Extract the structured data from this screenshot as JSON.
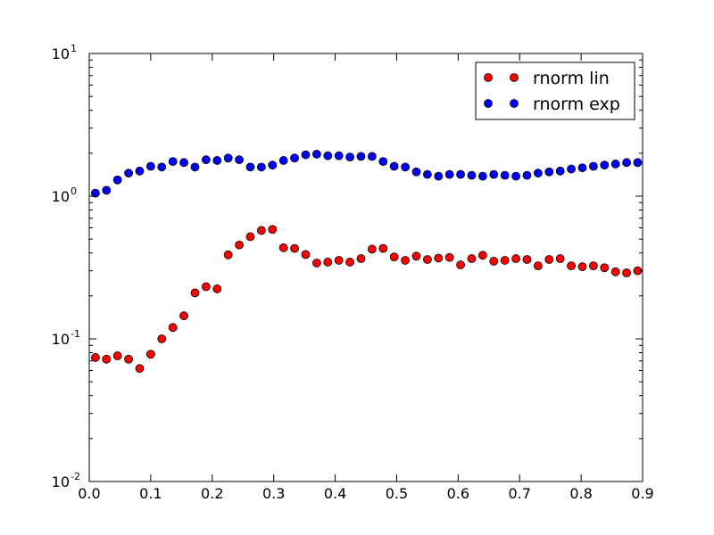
{
  "chart_data": {
    "type": "scatter",
    "title": "",
    "xlabel": "",
    "ylabel": "",
    "xlim": [
      0.0,
      0.9
    ],
    "ylim": [
      0.01,
      10
    ],
    "yscale": "log",
    "grid": false,
    "legend_position": "top-right",
    "x_ticks": [
      "0.0",
      "0.1",
      "0.2",
      "0.3",
      "0.4",
      "0.5",
      "0.6",
      "0.7",
      "0.8",
      "0.9"
    ],
    "y_ticks": [
      {
        "base": "10",
        "exp": "-2",
        "value": 0.01
      },
      {
        "base": "10",
        "exp": "-1",
        "value": 0.1
      },
      {
        "base": "10",
        "exp": "0",
        "value": 1
      },
      {
        "base": "10",
        "exp": "1",
        "value": 10
      }
    ],
    "series": [
      {
        "name": "rnorm lin",
        "color": "#ff0000",
        "x": [
          0.01,
          0.028,
          0.046,
          0.064,
          0.082,
          0.1,
          0.118,
          0.136,
          0.154,
          0.172,
          0.19,
          0.208,
          0.226,
          0.244,
          0.262,
          0.28,
          0.298,
          0.316,
          0.334,
          0.352,
          0.37,
          0.388,
          0.406,
          0.424,
          0.442,
          0.46,
          0.478,
          0.496,
          0.514,
          0.532,
          0.55,
          0.568,
          0.586,
          0.604,
          0.622,
          0.64,
          0.658,
          0.676,
          0.694,
          0.712,
          0.73,
          0.748,
          0.766,
          0.784,
          0.802,
          0.82,
          0.838,
          0.856,
          0.874,
          0.892
        ],
        "y": [
          0.074,
          0.072,
          0.076,
          0.072,
          0.062,
          0.078,
          0.1,
          0.12,
          0.145,
          0.21,
          0.232,
          0.224,
          0.388,
          0.455,
          0.52,
          0.575,
          0.585,
          0.435,
          0.43,
          0.39,
          0.34,
          0.345,
          0.355,
          0.345,
          0.365,
          0.425,
          0.43,
          0.375,
          0.355,
          0.38,
          0.36,
          0.368,
          0.372,
          0.33,
          0.365,
          0.385,
          0.35,
          0.355,
          0.365,
          0.36,
          0.325,
          0.36,
          0.365,
          0.325,
          0.32,
          0.325,
          0.315,
          0.295,
          0.29,
          0.3
        ]
      },
      {
        "name": "rnorm exp",
        "color": "#0000ff",
        "x": [
          0.01,
          0.028,
          0.046,
          0.064,
          0.082,
          0.1,
          0.118,
          0.136,
          0.154,
          0.172,
          0.19,
          0.208,
          0.226,
          0.244,
          0.262,
          0.28,
          0.298,
          0.316,
          0.334,
          0.352,
          0.37,
          0.388,
          0.406,
          0.424,
          0.442,
          0.46,
          0.478,
          0.496,
          0.514,
          0.532,
          0.55,
          0.568,
          0.586,
          0.604,
          0.622,
          0.64,
          0.658,
          0.676,
          0.694,
          0.712,
          0.73,
          0.748,
          0.766,
          0.784,
          0.802,
          0.82,
          0.838,
          0.856,
          0.874,
          0.892
        ],
        "y": [
          1.05,
          1.1,
          1.3,
          1.45,
          1.5,
          1.62,
          1.6,
          1.75,
          1.72,
          1.6,
          1.8,
          1.78,
          1.85,
          1.8,
          1.6,
          1.6,
          1.65,
          1.78,
          1.85,
          1.95,
          1.97,
          1.92,
          1.92,
          1.88,
          1.9,
          1.9,
          1.75,
          1.62,
          1.6,
          1.48,
          1.42,
          1.38,
          1.42,
          1.42,
          1.4,
          1.38,
          1.42,
          1.4,
          1.38,
          1.4,
          1.45,
          1.48,
          1.5,
          1.55,
          1.58,
          1.62,
          1.65,
          1.68,
          1.72,
          1.72
        ]
      }
    ]
  }
}
